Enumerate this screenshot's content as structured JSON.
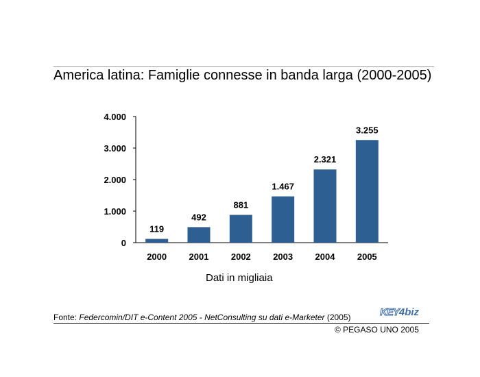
{
  "title": "America latina: Famiglie connesse in banda larga (2000-2005)",
  "source": {
    "prefix": "Fonte: ",
    "text": "Federcomin/DIT e-Content 2005 - NetConsulting su dati e-Marketer",
    "suffix": " (2005)"
  },
  "logo": {
    "key": "KEY",
    "num": "4",
    "biz": "biz"
  },
  "copyright": "© PEGASO UNO 2005",
  "colors": {
    "bar": "#2e5f92",
    "axis": "#000000"
  },
  "chart_data": {
    "type": "bar",
    "title": "America latina: Famiglie connesse in banda larga (2000-2005)",
    "xlabel": "Dati in migliaia",
    "ylabel": "",
    "categories": [
      "2000",
      "2001",
      "2002",
      "2003",
      "2004",
      "2005"
    ],
    "values": [
      119,
      492,
      881,
      1467,
      2321,
      3255
    ],
    "value_labels": [
      "119",
      "492",
      "881",
      "1.467",
      "2.321",
      "3.255"
    ],
    "ylim": [
      0,
      4000
    ],
    "yticks": [
      0,
      1000,
      2000,
      3000,
      4000
    ],
    "ytick_labels": [
      "0",
      "1.000",
      "2.000",
      "3.000",
      "4.000"
    ],
    "grid": false,
    "legend": "none"
  }
}
